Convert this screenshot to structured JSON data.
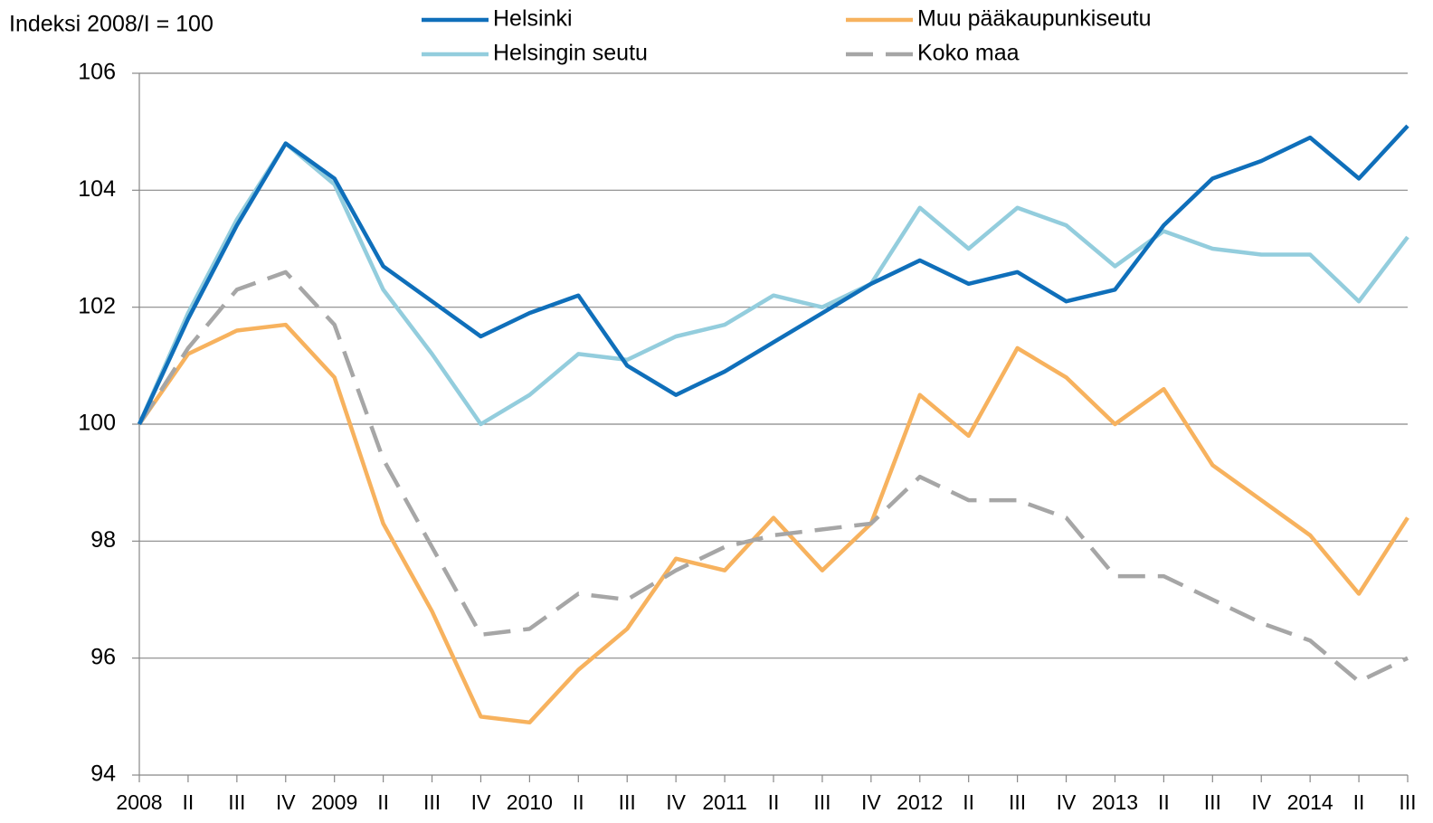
{
  "chart_data": {
    "type": "line",
    "ylabel": "Indeksi 2008/I = 100",
    "categories": [
      "2008",
      "II",
      "III",
      "IV",
      "2009",
      "II",
      "III",
      "IV",
      "2010",
      "II",
      "III",
      "IV",
      "2011",
      "II",
      "III",
      "IV",
      "2012",
      "II",
      "III",
      "IV",
      "2013",
      "II",
      "III",
      "IV",
      "2014",
      "II",
      "III"
    ],
    "series": [
      {
        "name": "Helsinki",
        "color": "#0f6fba",
        "dash": false,
        "values": [
          100,
          101.8,
          103.4,
          104.8,
          104.2,
          102.7,
          102.1,
          101.5,
          101.9,
          102.2,
          101.0,
          100.5,
          100.9,
          101.4,
          101.9,
          102.4,
          102.8,
          102.4,
          102.6,
          102.1,
          102.3,
          103.4,
          104.2,
          104.5,
          104.9,
          104.2,
          105.1
        ]
      },
      {
        "name": "Muu pääkaupunkiseutu",
        "color": "#f7b25e",
        "dash": false,
        "values": [
          100,
          101.2,
          101.6,
          101.7,
          100.8,
          98.3,
          96.8,
          95.0,
          94.9,
          95.8,
          96.5,
          97.7,
          97.5,
          98.4,
          97.5,
          98.3,
          100.5,
          99.8,
          101.3,
          100.8,
          100.0,
          100.6,
          99.3,
          98.7,
          98.1,
          97.1,
          98.4
        ]
      },
      {
        "name": "Helsingin seutu",
        "color": "#93cddd",
        "dash": false,
        "values": [
          100,
          101.9,
          103.5,
          104.8,
          104.1,
          102.3,
          101.2,
          100.0,
          100.5,
          101.2,
          101.1,
          101.5,
          101.7,
          102.2,
          102.0,
          102.4,
          103.7,
          103.0,
          103.7,
          103.4,
          102.7,
          103.3,
          103.0,
          102.9,
          102.9,
          102.1,
          103.2
        ]
      },
      {
        "name": "Koko maa",
        "color": "#a6a6a6",
        "dash": true,
        "values": [
          100,
          101.3,
          102.3,
          102.6,
          101.7,
          99.4,
          97.9,
          96.4,
          96.5,
          97.1,
          97.0,
          97.5,
          97.9,
          98.1,
          98.2,
          98.3,
          99.1,
          98.7,
          98.7,
          98.4,
          97.4,
          97.4,
          97.0,
          96.6,
          96.3,
          95.6,
          96.0
        ]
      }
    ],
    "ylim": [
      94,
      106
    ],
    "yticks": [
      94,
      96,
      98,
      100,
      102,
      104,
      106
    ],
    "grid": true,
    "legend": "top"
  }
}
